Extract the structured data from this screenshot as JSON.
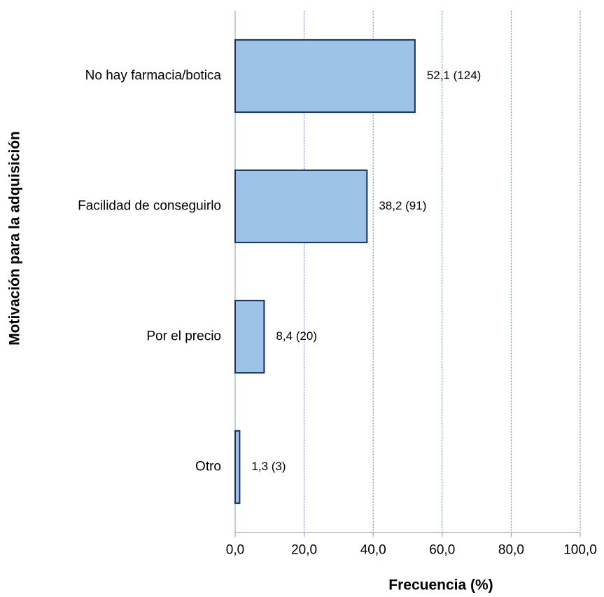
{
  "chart_data": {
    "type": "bar",
    "orientation": "horizontal",
    "categories": [
      "No hay farmacia/botica",
      "Facilidad de conseguirlo",
      "Por el precio",
      "Otro"
    ],
    "values": [
      52.1,
      38.2,
      8.4,
      1.3
    ],
    "value_labels": [
      "52,1 (124)",
      "38,2 (91)",
      "8,4 (20)",
      "1,3 (3)"
    ],
    "color": "#9dc3e6",
    "edge_color": "#17305e",
    "xlim": [
      0,
      100
    ],
    "xticks": [
      {
        "value": 0,
        "label": "0,0"
      },
      {
        "value": 20,
        "label": "20,0"
      },
      {
        "value": 40,
        "label": "40,0"
      },
      {
        "value": 60,
        "label": "60,0"
      },
      {
        "value": 80,
        "label": "80,0"
      },
      {
        "value": 100,
        "label": "100,0"
      }
    ],
    "grid": true,
    "x_label": "Frecuencia (%)",
    "y_label": "Motivación para la adquisición"
  }
}
